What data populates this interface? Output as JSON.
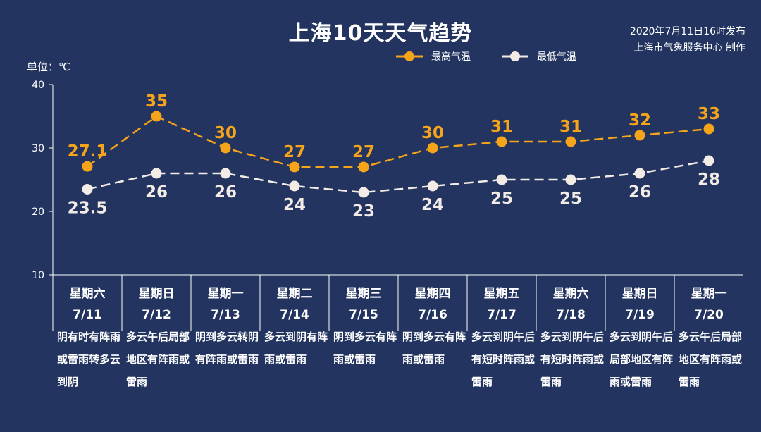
{
  "title": "上海10天天气趋势",
  "publish": {
    "line1": "2020年7月11日16时发布",
    "line2": "上海市气象服务中心 制作"
  },
  "unit": "单位：℃",
  "colors": {
    "background": "#22345f",
    "high": "#f6a41a",
    "low": "#f3ece6",
    "axis": "#ffffff"
  },
  "legend": [
    {
      "label": "最高气温",
      "color": "#f6a41a"
    },
    {
      "label": "最低气温",
      "color": "#f3ece6"
    }
  ],
  "days": [
    {
      "weekday": "星期六",
      "date": "7/11",
      "weather": "阴有时有阵雨或雷雨转多云到阴"
    },
    {
      "weekday": "星期日",
      "date": "7/12",
      "weather": "多云午后局部地区有阵雨或雷雨"
    },
    {
      "weekday": "星期一",
      "date": "7/13",
      "weather": "阴到多云转阴有阵雨或雷雨"
    },
    {
      "weekday": "星期二",
      "date": "7/14",
      "weather": "多云到阴有阵雨或雷雨"
    },
    {
      "weekday": "星期三",
      "date": "7/15",
      "weather": "阴到多云有阵雨或雷雨"
    },
    {
      "weekday": "星期四",
      "date": "7/16",
      "weather": "阴到多云有阵雨或雷雨"
    },
    {
      "weekday": "星期五",
      "date": "7/17",
      "weather": "多云到阴午后有短时阵雨或雷雨"
    },
    {
      "weekday": "星期六",
      "date": "7/18",
      "weather": "多云到阴午后有短时阵雨或雷雨"
    },
    {
      "weekday": "星期日",
      "date": "7/19",
      "weather": "多云到阴午后局部地区有阵雨或雷雨"
    },
    {
      "weekday": "星期一",
      "date": "7/20",
      "weather": "多云午后局部地区有阵雨或雷雨"
    }
  ],
  "chart_data": {
    "type": "line",
    "title": "上海10天天气趋势",
    "ylabel": "单位：℃",
    "ylim": [
      10,
      40
    ],
    "yticks": [
      10,
      20,
      30,
      40
    ],
    "grid": false,
    "legend_position": "top-right",
    "categories": [
      "7/11",
      "7/12",
      "7/13",
      "7/14",
      "7/15",
      "7/16",
      "7/17",
      "7/18",
      "7/19",
      "7/20"
    ],
    "series": [
      {
        "name": "最高气温",
        "values": [
          27.1,
          35,
          30,
          27,
          27,
          30,
          31,
          31,
          32,
          33
        ],
        "labels": [
          "27.1",
          "35",
          "30",
          "27",
          "27",
          "30",
          "31",
          "31",
          "32",
          "33"
        ]
      },
      {
        "name": "最低气温",
        "values": [
          23.5,
          26,
          26,
          24,
          23,
          24,
          25,
          25,
          26,
          28
        ],
        "labels": [
          "23.5",
          "26",
          "26",
          "24",
          "23",
          "24",
          "25",
          "25",
          "26",
          "28"
        ]
      }
    ]
  }
}
